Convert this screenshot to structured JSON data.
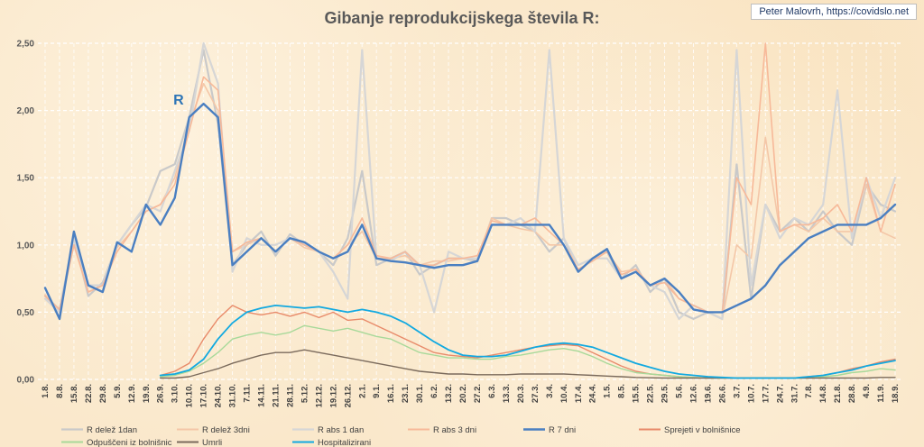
{
  "credit": "Peter Malovrh, https://covidslo.net",
  "chart_data": {
    "type": "line",
    "title": "Gibanje reprodukcijskega števila R:",
    "annotation": "R",
    "xlabel": "",
    "ylabel": "",
    "ylim": [
      0,
      2.5
    ],
    "y_ticks": [
      "0,00",
      "0,50",
      "1,00",
      "1,50",
      "2,00",
      "2,50"
    ],
    "grid": true,
    "legend_position": "bottom",
    "categories": [
      "1.8.",
      "8.8.",
      "15.8.",
      "22.8.",
      "29.8.",
      "5.9.",
      "12.9.",
      "19.9.",
      "26.9.",
      "3.10.",
      "10.10.",
      "17.10.",
      "24.10.",
      "31.10.",
      "7.11.",
      "14.11.",
      "21.11.",
      "28.11.",
      "5.12.",
      "12.12.",
      "19.12.",
      "26.12.",
      "2.1.",
      "9.1.",
      "16.1.",
      "23.1.",
      "30.1.",
      "6.2.",
      "13.2.",
      "20.2.",
      "27.2.",
      "6.3.",
      "13.3.",
      "20.3.",
      "27.3.",
      "3.4.",
      "10.4.",
      "17.4.",
      "24.4.",
      "1.5.",
      "8.5.",
      "15.5.",
      "22.5.",
      "29.5.",
      "5.6.",
      "12.6.",
      "19.6.",
      "26.6.",
      "3.7.",
      "10.7.",
      "17.7.",
      "24.7.",
      "31.7.",
      "7.8.",
      "14.8.",
      "21.8.",
      "28.8.",
      "4.9.",
      "11.9.",
      "18.9."
    ],
    "series": [
      {
        "name": "R delež 1dan",
        "color": "#c9c9c9",
        "width": 2.2,
        "values": [
          0.62,
          0.52,
          1.05,
          0.62,
          0.72,
          1.0,
          1.15,
          1.28,
          1.55,
          1.6,
          1.95,
          2.45,
          1.9,
          0.85,
          1.0,
          1.1,
          0.92,
          1.08,
          1.0,
          0.95,
          0.85,
          1.05,
          1.55,
          0.85,
          0.9,
          0.95,
          0.78,
          0.85,
          0.9,
          0.9,
          0.88,
          1.2,
          1.2,
          1.15,
          1.1,
          0.95,
          1.05,
          0.8,
          0.9,
          0.95,
          0.75,
          0.85,
          0.65,
          0.75,
          0.5,
          0.45,
          0.5,
          0.45,
          1.6,
          0.6,
          1.3,
          1.1,
          1.2,
          1.1,
          1.25,
          1.1,
          1.0,
          1.45,
          1.3,
          1.25
        ]
      },
      {
        "name": "R delež 3dni",
        "color": "#f4c7a8",
        "width": 1.6,
        "values": [
          0.63,
          0.5,
          1.0,
          0.65,
          0.7,
          0.98,
          1.1,
          1.25,
          1.3,
          1.5,
          1.9,
          2.2,
          2.0,
          0.95,
          1.0,
          1.05,
          0.95,
          1.05,
          0.98,
          0.95,
          0.9,
          1.0,
          1.1,
          0.9,
          0.9,
          0.92,
          0.85,
          0.88,
          0.88,
          0.9,
          0.9,
          1.2,
          1.15,
          1.12,
          1.1,
          1.0,
          1.0,
          0.85,
          0.9,
          0.95,
          0.8,
          0.82,
          0.7,
          0.75,
          0.6,
          0.55,
          0.5,
          0.45,
          1.0,
          0.9,
          1.8,
          1.1,
          1.15,
          1.1,
          1.2,
          1.1,
          1.1,
          1.45,
          1.1,
          1.05
        ]
      },
      {
        "name": "R abs 1 dan",
        "color": "#d6d6d6",
        "width": 2.2,
        "values": [
          0.6,
          0.5,
          1.05,
          0.7,
          0.7,
          1.0,
          1.15,
          1.3,
          1.25,
          1.55,
          1.85,
          2.5,
          2.2,
          0.8,
          1.05,
          1.0,
          1.0,
          1.05,
          1.0,
          0.95,
          0.8,
          0.6,
          2.45,
          0.9,
          0.88,
          0.95,
          0.85,
          0.5,
          0.95,
          0.9,
          0.9,
          1.15,
          1.15,
          1.2,
          1.1,
          2.45,
          1.05,
          0.85,
          0.9,
          0.9,
          0.75,
          0.8,
          0.7,
          0.65,
          0.45,
          0.55,
          0.5,
          0.45,
          2.45,
          0.7,
          1.3,
          1.05,
          1.2,
          1.15,
          1.3,
          2.15,
          1.05,
          1.5,
          1.2,
          1.5
        ]
      },
      {
        "name": "R abs 3 dni",
        "color": "#f7b999",
        "width": 1.6,
        "values": [
          0.62,
          0.52,
          1.0,
          0.65,
          0.7,
          0.95,
          1.1,
          1.25,
          1.3,
          1.45,
          1.85,
          2.25,
          2.15,
          0.95,
          1.02,
          1.05,
          0.95,
          1.05,
          1.0,
          0.95,
          0.9,
          1.0,
          1.2,
          0.92,
          0.9,
          0.95,
          0.85,
          0.85,
          0.9,
          0.9,
          0.92,
          1.18,
          1.15,
          1.15,
          1.2,
          1.1,
          1.0,
          0.82,
          0.88,
          0.95,
          0.78,
          0.82,
          0.7,
          0.72,
          0.6,
          0.55,
          0.5,
          0.5,
          1.5,
          1.3,
          2.5,
          1.1,
          1.15,
          1.15,
          1.2,
          1.3,
          1.1,
          1.5,
          1.1,
          1.45
        ]
      },
      {
        "name": "R 7 dni",
        "color": "#4a7fc1",
        "width": 2.4,
        "values": [
          0.68,
          0.45,
          1.1,
          0.7,
          0.65,
          1.02,
          0.95,
          1.3,
          1.15,
          1.35,
          1.95,
          2.05,
          1.95,
          0.85,
          0.95,
          1.05,
          0.95,
          1.05,
          1.02,
          0.95,
          0.9,
          0.95,
          1.15,
          0.9,
          0.88,
          0.87,
          0.85,
          0.83,
          0.85,
          0.85,
          0.88,
          1.15,
          1.15,
          1.15,
          1.15,
          1.15,
          1.0,
          0.8,
          0.9,
          0.97,
          0.75,
          0.8,
          0.7,
          0.75,
          0.65,
          0.52,
          0.5,
          0.5,
          0.55,
          0.6,
          0.7,
          0.85,
          0.95,
          1.05,
          1.1,
          1.15,
          1.15,
          1.15,
          1.2,
          1.3
        ]
      },
      {
        "name": "Sprejeti v bolnišnice",
        "color": "#e88a6a",
        "width": 1.4,
        "values": [
          null,
          null,
          null,
          null,
          null,
          null,
          null,
          null,
          0.03,
          0.06,
          0.12,
          0.3,
          0.45,
          0.55,
          0.5,
          0.48,
          0.5,
          0.47,
          0.5,
          0.46,
          0.5,
          0.44,
          0.45,
          0.4,
          0.35,
          0.3,
          0.25,
          0.2,
          0.18,
          0.17,
          0.16,
          0.18,
          0.2,
          0.22,
          0.24,
          0.25,
          0.26,
          0.25,
          0.2,
          0.15,
          0.1,
          0.06,
          0.04,
          0.03,
          0.02,
          0.015,
          0.01,
          0.01,
          0.01,
          0.01,
          0.01,
          0.01,
          0.01,
          0.02,
          0.03,
          0.05,
          0.08,
          0.1,
          0.13,
          0.15
        ]
      },
      {
        "name": "Odpuščeni iz bolnišnic",
        "color": "#a8d99a",
        "width": 1.4,
        "values": [
          null,
          null,
          null,
          null,
          null,
          null,
          null,
          null,
          0.02,
          0.03,
          0.06,
          0.12,
          0.2,
          0.3,
          0.33,
          0.35,
          0.33,
          0.35,
          0.4,
          0.38,
          0.36,
          0.38,
          0.35,
          0.32,
          0.3,
          0.25,
          0.2,
          0.18,
          0.16,
          0.16,
          0.15,
          0.15,
          0.17,
          0.18,
          0.2,
          0.22,
          0.23,
          0.21,
          0.17,
          0.12,
          0.08,
          0.05,
          0.04,
          0.03,
          0.02,
          0.015,
          0.01,
          0.01,
          0.01,
          0.01,
          0.01,
          0.01,
          0.01,
          0.01,
          0.02,
          0.03,
          0.05,
          0.06,
          0.08,
          0.07
        ]
      },
      {
        "name": "Umrli",
        "color": "#7a6a5c",
        "width": 1.4,
        "values": [
          null,
          null,
          null,
          null,
          null,
          null,
          null,
          null,
          0.01,
          0.01,
          0.02,
          0.05,
          0.08,
          0.12,
          0.15,
          0.18,
          0.2,
          0.2,
          0.22,
          0.2,
          0.18,
          0.16,
          0.14,
          0.12,
          0.1,
          0.08,
          0.06,
          0.05,
          0.04,
          0.04,
          0.035,
          0.035,
          0.035,
          0.04,
          0.04,
          0.04,
          0.04,
          0.035,
          0.03,
          0.025,
          0.02,
          0.015,
          0.012,
          0.01,
          0.01,
          0.01,
          0.01,
          0.01,
          0.01,
          0.01,
          0.01,
          0.01,
          0.01,
          0.01,
          0.01,
          0.01,
          0.01,
          0.01,
          0.015,
          0.015
        ]
      },
      {
        "name": "Hospitalizirani",
        "color": "#12a9e0",
        "width": 1.8,
        "values": [
          null,
          null,
          null,
          null,
          null,
          null,
          null,
          null,
          0.03,
          0.04,
          0.07,
          0.15,
          0.3,
          0.42,
          0.5,
          0.53,
          0.55,
          0.54,
          0.53,
          0.54,
          0.52,
          0.5,
          0.52,
          0.5,
          0.47,
          0.42,
          0.35,
          0.28,
          0.22,
          0.18,
          0.17,
          0.17,
          0.18,
          0.21,
          0.24,
          0.26,
          0.27,
          0.26,
          0.24,
          0.2,
          0.16,
          0.12,
          0.09,
          0.06,
          0.04,
          0.03,
          0.02,
          0.015,
          0.01,
          0.01,
          0.01,
          0.01,
          0.01,
          0.02,
          0.03,
          0.05,
          0.07,
          0.1,
          0.12,
          0.14
        ]
      }
    ]
  }
}
